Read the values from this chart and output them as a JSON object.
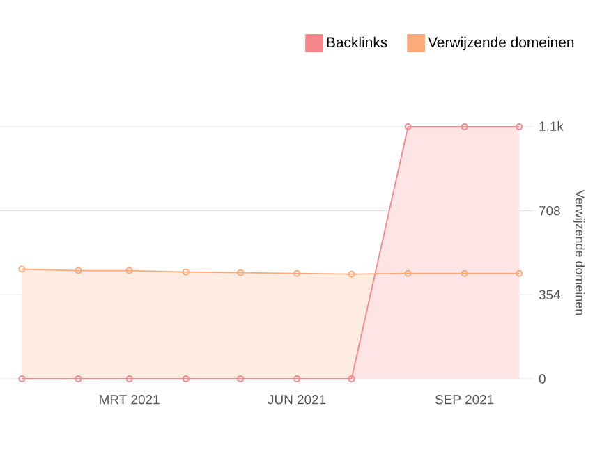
{
  "chart_data": {
    "type": "area",
    "x": [
      "2021-01",
      "2021-02",
      "2021-03",
      "2021-04",
      "2021-05",
      "2021-06",
      "2021-07",
      "2021-08",
      "2021-09",
      "2021-10"
    ],
    "series": [
      {
        "name": "Backlinks",
        "color": "#f5878a",
        "values": [
          0,
          0,
          0,
          0,
          0,
          0,
          0,
          1062,
          1062,
          1062
        ]
      },
      {
        "name": "Verwijzende domeinen",
        "color": "#fcaa7a",
        "values": [
          462,
          456,
          456,
          450,
          447,
          444,
          441,
          444,
          444,
          444
        ]
      }
    ],
    "ylabel": "Verwijzende domeinen",
    "ylim": [
      0,
      1062
    ],
    "yticks": [
      0,
      354,
      708,
      {
        "value": 1062,
        "label": "1,1k"
      }
    ],
    "xlim": [
      "2020-12-20",
      "2021-10-09"
    ],
    "xticks": [
      {
        "value": "2021-03",
        "label": "MRT 2021"
      },
      {
        "value": "2021-06",
        "label": "JUN 2021"
      },
      {
        "value": "2021-09",
        "label": "SEP 2021"
      }
    ],
    "grid": "y",
    "legend": "top right",
    "marker": "circle",
    "line_style": "solid"
  }
}
